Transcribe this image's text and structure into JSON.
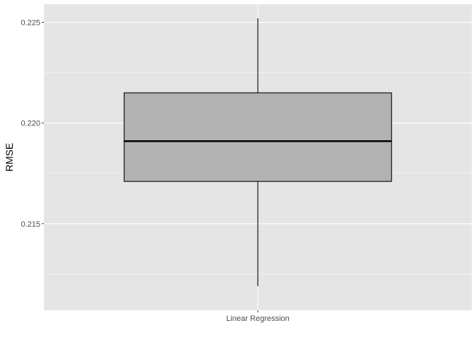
{
  "chart_data": {
    "type": "boxplot",
    "categories": [
      "Linear Regression"
    ],
    "series": [
      {
        "values": [
          {
            "min": 0.2119,
            "q1": 0.2171,
            "median": 0.2191,
            "q3": 0.2215,
            "max": 0.2252
          }
        ]
      }
    ],
    "xlabel": "",
    "ylabel": "RMSE",
    "ylim": [
      0.2107,
      0.2259
    ],
    "y_ticks": [
      "0.215",
      "0.220",
      "0.225"
    ],
    "y_tick_values": [
      0.215,
      0.22,
      0.225
    ],
    "grid": true,
    "legend": "none",
    "colors": {
      "panel": "#e5e5e5",
      "grid_major": "#ffffff",
      "box_fill": "#b2b2b2",
      "box_stroke": "#000000",
      "tick_text": "#4d4d4d",
      "tick_mark": "#333333"
    }
  }
}
